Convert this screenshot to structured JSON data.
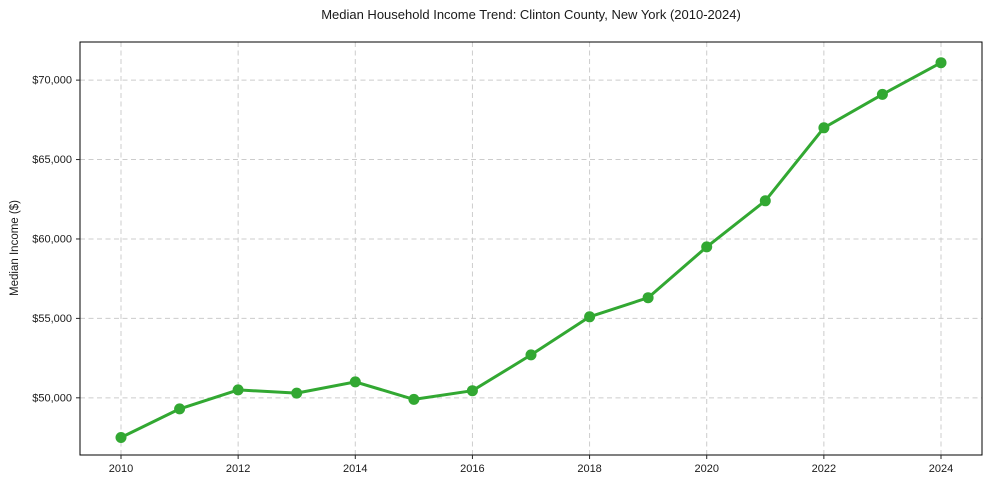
{
  "chart_data": {
    "type": "line",
    "title": "Median Household Income Trend: Clinton County, New York (2010-2024)",
    "xlabel": "",
    "ylabel": "Median Income ($)",
    "x": [
      2010,
      2011,
      2012,
      2013,
      2014,
      2015,
      2016,
      2017,
      2018,
      2019,
      2020,
      2021,
      2022,
      2023,
      2024
    ],
    "values": [
      47500,
      49300,
      50500,
      50300,
      51000,
      49900,
      50450,
      52700,
      55100,
      56300,
      59500,
      62400,
      67000,
      69100,
      71100
    ],
    "x_ticks": [
      2010,
      2012,
      2014,
      2016,
      2018,
      2020,
      2022,
      2024
    ],
    "x_tick_labels": [
      "2010",
      "2012",
      "2014",
      "2016",
      "2018",
      "2020",
      "2022",
      "2024"
    ],
    "y_ticks": [
      50000,
      55000,
      60000,
      65000,
      70000
    ],
    "y_tick_labels": [
      "$50,000",
      "$55,000",
      "$60,000",
      "$65,000",
      "$70,000"
    ],
    "xlim": [
      2009.3,
      2024.7
    ],
    "ylim": [
      46400,
      72400
    ],
    "grid": true,
    "grid_style": "dashed",
    "legend": false,
    "colors": {
      "line": "#32a832",
      "marker": "#32a832",
      "grid": "#cccccc",
      "spine": "#000000",
      "tick": "#262626",
      "text": "#1a1a1a",
      "plot_background": "#ffffff"
    }
  }
}
